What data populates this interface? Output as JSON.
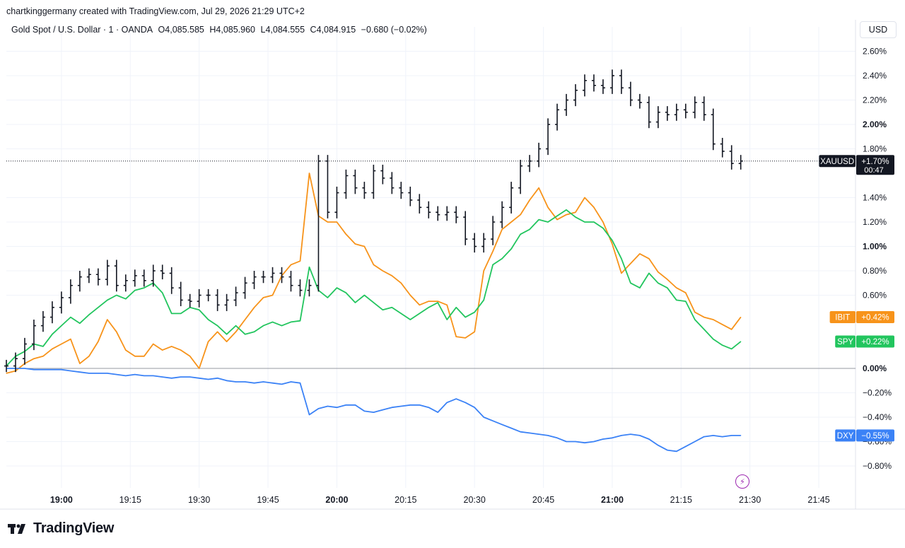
{
  "header": {
    "attribution": "chartkinggermany created with TradingView.com, Jul 29, 2026 21:29 UTC+2",
    "symbol": "Gold Spot / U.S. Dollar · 1 · OANDA",
    "open": "O4,085.585",
    "high": "H4,085.960",
    "low": "L4,084.555",
    "close": "C4,084.915",
    "change": "−0.680 (−0.02%)"
  },
  "currency_unit": "USD",
  "footer": {
    "brand": "TradingView"
  },
  "colors": {
    "XAUUSD": "#131722",
    "IBIT": "#f7931a",
    "SPY": "#22c55e",
    "DXY": "#3b82f6",
    "zero_line": "#9598a1",
    "event_bolt": "#9c27b0"
  },
  "chart_data": {
    "type": "line",
    "title": "Gold Spot / U.S. Dollar · 1 · OANDA",
    "x_tick_labels": [
      "19:00",
      "19:15",
      "19:30",
      "19:45",
      "20:00",
      "20:15",
      "20:30",
      "20:45",
      "21:00",
      "21:15",
      "21:30",
      "21:45"
    ],
    "x_tick_bold": [
      "19:00",
      "20:00",
      "21:00"
    ],
    "x_range_minutes": [
      "18:48",
      "21:53"
    ],
    "y_tick_labels": [
      "2.60%",
      "2.40%",
      "2.20%",
      "2.00%",
      "1.80%",
      "1.40%",
      "1.20%",
      "1.00%",
      "0.80%",
      "0.60%",
      "0.00%",
      "−0.20%",
      "−0.40%",
      "−0.60%",
      "−0.80%"
    ],
    "y_tick_bold": [
      "2.00%",
      "1.00%",
      "0.00%"
    ],
    "y_unit": "percent change",
    "ylim": [
      -0.92,
      2.73
    ],
    "grid": true,
    "series": [
      {
        "name": "XAUUSD",
        "style": "ohlc-bars",
        "x": [
          "18:48",
          "18:50",
          "18:52",
          "18:54",
          "18:56",
          "18:58",
          "19:00",
          "19:02",
          "19:04",
          "19:06",
          "19:08",
          "19:10",
          "19:12",
          "19:14",
          "19:16",
          "19:18",
          "19:20",
          "19:22",
          "19:24",
          "19:26",
          "19:28",
          "19:30",
          "19:32",
          "19:34",
          "19:36",
          "19:38",
          "19:40",
          "19:42",
          "19:44",
          "19:46",
          "19:48",
          "19:50",
          "19:52",
          "19:54",
          "19:56",
          "19:58",
          "20:00",
          "20:02",
          "20:04",
          "20:06",
          "20:08",
          "20:10",
          "20:12",
          "20:14",
          "20:16",
          "20:18",
          "20:20",
          "20:22",
          "20:24",
          "20:26",
          "20:28",
          "20:30",
          "20:32",
          "20:34",
          "20:36",
          "20:38",
          "20:40",
          "20:42",
          "20:44",
          "20:46",
          "20:48",
          "20:50",
          "20:52",
          "20:54",
          "20:56",
          "20:58",
          "21:00",
          "21:02",
          "21:04",
          "21:06",
          "21:08",
          "21:10",
          "21:12",
          "21:14",
          "21:16",
          "21:18",
          "21:20",
          "21:22",
          "21:24",
          "21:26",
          "21:28"
        ],
        "values": [
          0.02,
          0.08,
          0.2,
          0.35,
          0.42,
          0.5,
          0.58,
          0.68,
          0.75,
          0.77,
          0.73,
          0.84,
          0.68,
          0.72,
          0.76,
          0.72,
          0.8,
          0.78,
          0.66,
          0.56,
          0.55,
          0.6,
          0.6,
          0.52,
          0.56,
          0.62,
          0.7,
          0.75,
          0.75,
          0.78,
          0.75,
          0.68,
          0.64,
          0.68,
          1.7,
          1.28,
          1.44,
          1.58,
          1.48,
          1.44,
          1.62,
          1.56,
          1.48,
          1.44,
          1.38,
          1.32,
          1.28,
          1.26,
          1.28,
          1.24,
          1.06,
          1.0,
          1.06,
          1.2,
          1.32,
          1.48,
          1.66,
          1.7,
          1.8,
          2.0,
          2.12,
          2.2,
          2.28,
          2.36,
          2.32,
          2.3,
          2.4,
          2.3,
          2.2,
          2.18,
          2.02,
          2.1,
          2.08,
          2.12,
          2.1,
          2.18,
          2.08,
          1.84,
          1.78,
          1.68,
          1.7
        ]
      },
      {
        "name": "IBIT",
        "style": "line",
        "x": [
          "18:48",
          "18:50",
          "18:52",
          "18:54",
          "18:56",
          "18:58",
          "19:00",
          "19:02",
          "19:04",
          "19:06",
          "19:08",
          "19:10",
          "19:12",
          "19:14",
          "19:16",
          "19:18",
          "19:20",
          "19:22",
          "19:24",
          "19:26",
          "19:28",
          "19:30",
          "19:32",
          "19:34",
          "19:36",
          "19:38",
          "19:40",
          "19:42",
          "19:44",
          "19:46",
          "19:48",
          "19:50",
          "19:52",
          "19:54",
          "19:56",
          "19:58",
          "20:00",
          "20:02",
          "20:04",
          "20:06",
          "20:08",
          "20:10",
          "20:12",
          "20:14",
          "20:16",
          "20:18",
          "20:20",
          "20:22",
          "20:24",
          "20:26",
          "20:28",
          "20:30",
          "20:32",
          "20:34",
          "20:36",
          "20:38",
          "20:40",
          "20:42",
          "20:44",
          "20:46",
          "20:48",
          "20:50",
          "20:52",
          "20:54",
          "20:56",
          "20:58",
          "21:00",
          "21:02",
          "21:04",
          "21:06",
          "21:08",
          "21:10",
          "21:12",
          "21:14",
          "21:16",
          "21:18",
          "21:20",
          "21:22",
          "21:24",
          "21:26",
          "21:28"
        ],
        "values": [
          -0.04,
          -0.02,
          0.04,
          0.08,
          0.1,
          0.16,
          0.2,
          0.24,
          0.04,
          0.1,
          0.22,
          0.4,
          0.3,
          0.15,
          0.1,
          0.1,
          0.2,
          0.15,
          0.18,
          0.15,
          0.1,
          0.0,
          0.22,
          0.3,
          0.22,
          0.3,
          0.4,
          0.5,
          0.58,
          0.6,
          0.76,
          0.85,
          0.88,
          1.6,
          1.25,
          1.2,
          1.2,
          1.1,
          1.02,
          1.0,
          0.85,
          0.8,
          0.76,
          0.7,
          0.6,
          0.52,
          0.55,
          0.55,
          0.52,
          0.26,
          0.25,
          0.3,
          0.8,
          0.96,
          1.14,
          1.2,
          1.26,
          1.38,
          1.48,
          1.32,
          1.22,
          1.26,
          1.28,
          1.4,
          1.32,
          1.2,
          1.02,
          0.78,
          0.86,
          0.94,
          0.9,
          0.79,
          0.73,
          0.66,
          0.62,
          0.46,
          0.42,
          0.4,
          0.36,
          0.32,
          0.42
        ]
      },
      {
        "name": "SPY",
        "style": "line",
        "x": [
          "18:48",
          "18:50",
          "18:52",
          "18:54",
          "18:56",
          "18:58",
          "19:00",
          "19:02",
          "19:04",
          "19:06",
          "19:08",
          "19:10",
          "19:12",
          "19:14",
          "19:16",
          "19:18",
          "19:20",
          "19:22",
          "19:24",
          "19:26",
          "19:28",
          "19:30",
          "19:32",
          "19:34",
          "19:36",
          "19:38",
          "19:40",
          "19:42",
          "19:44",
          "19:46",
          "19:48",
          "19:50",
          "19:52",
          "19:54",
          "19:56",
          "19:58",
          "20:00",
          "20:02",
          "20:04",
          "20:06",
          "20:08",
          "20:10",
          "20:12",
          "20:14",
          "20:16",
          "20:18",
          "20:20",
          "20:22",
          "20:24",
          "20:26",
          "20:28",
          "20:30",
          "20:32",
          "20:34",
          "20:36",
          "20:38",
          "20:40",
          "20:42",
          "20:44",
          "20:46",
          "20:48",
          "20:50",
          "20:52",
          "20:54",
          "20:56",
          "20:58",
          "21:00",
          "21:02",
          "21:04",
          "21:06",
          "21:08",
          "21:10",
          "21:12",
          "21:14",
          "21:16",
          "21:18",
          "21:20",
          "21:22",
          "21:24",
          "21:26",
          "21:28"
        ],
        "values": [
          0.02,
          0.1,
          0.14,
          0.2,
          0.18,
          0.28,
          0.35,
          0.42,
          0.37,
          0.44,
          0.5,
          0.56,
          0.6,
          0.57,
          0.64,
          0.66,
          0.7,
          0.62,
          0.45,
          0.45,
          0.5,
          0.48,
          0.4,
          0.35,
          0.28,
          0.35,
          0.28,
          0.3,
          0.35,
          0.38,
          0.35,
          0.38,
          0.39,
          0.83,
          0.64,
          0.58,
          0.66,
          0.62,
          0.54,
          0.6,
          0.54,
          0.48,
          0.5,
          0.45,
          0.4,
          0.45,
          0.5,
          0.54,
          0.4,
          0.5,
          0.42,
          0.46,
          0.56,
          0.85,
          0.9,
          0.98,
          1.1,
          1.14,
          1.22,
          1.2,
          1.25,
          1.3,
          1.24,
          1.2,
          1.2,
          1.15,
          1.05,
          0.9,
          0.7,
          0.66,
          0.78,
          0.7,
          0.66,
          0.56,
          0.55,
          0.4,
          0.32,
          0.24,
          0.19,
          0.16,
          0.22
        ]
      },
      {
        "name": "DXY",
        "style": "line",
        "x": [
          "18:48",
          "18:50",
          "18:52",
          "18:54",
          "18:56",
          "18:58",
          "19:00",
          "19:02",
          "19:04",
          "19:06",
          "19:08",
          "19:10",
          "19:12",
          "19:14",
          "19:16",
          "19:18",
          "19:20",
          "19:22",
          "19:24",
          "19:26",
          "19:28",
          "19:30",
          "19:32",
          "19:34",
          "19:36",
          "19:38",
          "19:40",
          "19:42",
          "19:44",
          "19:46",
          "19:48",
          "19:50",
          "19:52",
          "19:54",
          "19:56",
          "19:58",
          "20:00",
          "20:02",
          "20:04",
          "20:06",
          "20:08",
          "20:10",
          "20:12",
          "20:14",
          "20:16",
          "20:18",
          "20:20",
          "20:22",
          "20:24",
          "20:26",
          "20:28",
          "20:30",
          "20:32",
          "20:34",
          "20:36",
          "20:38",
          "20:40",
          "20:42",
          "20:44",
          "20:46",
          "20:48",
          "20:50",
          "20:52",
          "20:54",
          "20:56",
          "20:58",
          "21:00",
          "21:02",
          "21:04",
          "21:06",
          "21:08",
          "21:10",
          "21:12",
          "21:14",
          "21:16",
          "21:18",
          "21:20",
          "21:22",
          "21:24",
          "21:26",
          "21:28"
        ],
        "values": [
          0.0,
          0.0,
          0.0,
          -0.01,
          -0.01,
          -0.01,
          -0.01,
          -0.02,
          -0.03,
          -0.04,
          -0.04,
          -0.04,
          -0.05,
          -0.06,
          -0.05,
          -0.06,
          -0.06,
          -0.07,
          -0.08,
          -0.07,
          -0.07,
          -0.08,
          -0.09,
          -0.08,
          -0.1,
          -0.11,
          -0.11,
          -0.12,
          -0.11,
          -0.12,
          -0.13,
          -0.11,
          -0.12,
          -0.38,
          -0.33,
          -0.31,
          -0.32,
          -0.3,
          -0.3,
          -0.35,
          -0.36,
          -0.34,
          -0.32,
          -0.31,
          -0.3,
          -0.3,
          -0.32,
          -0.36,
          -0.28,
          -0.25,
          -0.28,
          -0.32,
          -0.4,
          -0.43,
          -0.46,
          -0.49,
          -0.52,
          -0.53,
          -0.54,
          -0.55,
          -0.57,
          -0.6,
          -0.6,
          -0.61,
          -0.6,
          -0.58,
          -0.57,
          -0.55,
          -0.54,
          -0.55,
          -0.58,
          -0.63,
          -0.67,
          -0.68,
          -0.64,
          -0.6,
          -0.56,
          -0.55,
          -0.56,
          -0.55,
          -0.55
        ]
      }
    ],
    "last_value_labels": [
      {
        "series": "XAUUSD",
        "text": "+1.70%",
        "countdown": "00:47",
        "value": 1.7
      },
      {
        "series": "IBIT",
        "text": "+0.42%",
        "value": 0.42
      },
      {
        "series": "SPY",
        "text": "+0.22%",
        "value": 0.22
      },
      {
        "series": "DXY",
        "text": "−0.55%",
        "value": -0.55
      }
    ]
  }
}
